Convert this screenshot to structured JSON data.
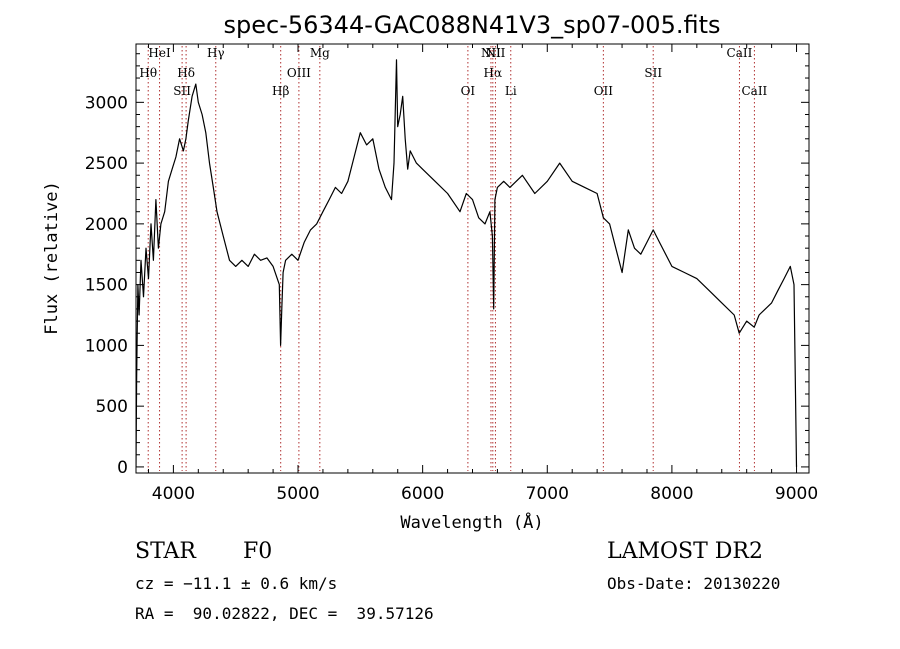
{
  "chart_data": {
    "type": "line",
    "title": "spec-56344-GAC088N41V3_sp07-005.fits",
    "xlabel": "Wavelength (Å)",
    "ylabel": "Flux (relative)",
    "xlim": [
      3700,
      9100
    ],
    "ylim": [
      -50,
      3480
    ],
    "x_ticks": [
      4000,
      5000,
      6000,
      7000,
      8000,
      9000
    ],
    "y_ticks": [
      0,
      500,
      1000,
      1500,
      2000,
      2500,
      3000
    ],
    "grid": false,
    "legend": "none",
    "line_color": "#000000",
    "marker_color": "#b03030",
    "series": [
      {
        "x": [
          3700,
          3705,
          3710,
          3715,
          3725,
          3740,
          3760,
          3780,
          3800,
          3820,
          3840,
          3860,
          3880,
          3900,
          3930,
          3960,
          3990,
          4020,
          4050,
          4080,
          4100,
          4120,
          4150,
          4180,
          4200,
          4230,
          4260,
          4290,
          4320,
          4350,
          4400,
          4450,
          4500,
          4550,
          4600,
          4650,
          4700,
          4750,
          4800,
          4850,
          4860,
          4870,
          4880,
          4900,
          4950,
          5000,
          5050,
          5100,
          5150,
          5200,
          5250,
          5300,
          5350,
          5400,
          5450,
          5500,
          5550,
          5600,
          5650,
          5700,
          5750,
          5770,
          5790,
          5800,
          5820,
          5840,
          5860,
          5880,
          5900,
          5950,
          6000,
          6100,
          6200,
          6300,
          6350,
          6400,
          6450,
          6500,
          6540,
          6560,
          6570,
          6580,
          6600,
          6650,
          6700,
          6800,
          6900,
          7000,
          7100,
          7200,
          7300,
          7400,
          7450,
          7500,
          7550,
          7600,
          7650,
          7700,
          7750,
          7800,
          7850,
          7900,
          8000,
          8100,
          8200,
          8300,
          8400,
          8500,
          8540,
          8600,
          8660,
          8700,
          8800,
          8850,
          8900,
          8950,
          8980,
          9000
        ],
        "y": [
          0,
          700,
          1100,
          1500,
          1250,
          1700,
          1400,
          1800,
          1550,
          2000,
          1700,
          2200,
          1800,
          2000,
          2100,
          2350,
          2450,
          2550,
          2700,
          2600,
          2700,
          2850,
          3050,
          3150,
          3000,
          2900,
          2750,
          2500,
          2300,
          2100,
          1900,
          1700,
          1650,
          1700,
          1650,
          1750,
          1700,
          1720,
          1650,
          1500,
          1000,
          1300,
          1600,
          1700,
          1750,
          1700,
          1850,
          1950,
          2000,
          2100,
          2200,
          2300,
          2250,
          2350,
          2550,
          2750,
          2650,
          2700,
          2450,
          2300,
          2200,
          2500,
          3350,
          2800,
          2900,
          3050,
          2700,
          2450,
          2600,
          2500,
          2450,
          2350,
          2250,
          2100,
          2250,
          2200,
          2050,
          2000,
          2100,
          1900,
          1300,
          2200,
          2300,
          2350,
          2300,
          2400,
          2250,
          2350,
          2500,
          2350,
          2300,
          2250,
          2050,
          2000,
          1800,
          1600,
          1950,
          1800,
          1750,
          1850,
          1950,
          1850,
          1650,
          1600,
          1550,
          1450,
          1350,
          1250,
          1100,
          1200,
          1150,
          1250,
          1350,
          1450,
          1550,
          1650,
          1500,
          0
        ]
      }
    ],
    "lines": [
      {
        "name": "Hθ",
        "x": 3798,
        "row": 2
      },
      {
        "name": "HeI",
        "x": 3889,
        "row": 1
      },
      {
        "name": "SII",
        "x": 4070,
        "row": 4
      },
      {
        "name": "Hδ",
        "x": 4102,
        "row": 2
      },
      {
        "name": "Hγ",
        "x": 4340,
        "row": 1
      },
      {
        "name": "Hβ",
        "x": 4861,
        "row": 4
      },
      {
        "name": "OIII",
        "x": 5007,
        "row": 2
      },
      {
        "name": "Mg",
        "x": 5175,
        "row": 1
      },
      {
        "name": "OI",
        "x": 6363,
        "row": 4
      },
      {
        "name": "NII",
        "x": 6548,
        "row": 1
      },
      {
        "name": "Hα",
        "x": 6563,
        "row": 2
      },
      {
        "name": "NII",
        "x": 6584,
        "row": 0
      },
      {
        "name": "Li",
        "x": 6707,
        "row": 4
      },
      {
        "name": "OII",
        "x": 7450,
        "row": 4
      },
      {
        "name": "SII",
        "x": 7850,
        "row": 2
      },
      {
        "name": "CaII",
        "x": 8542,
        "row": 1
      },
      {
        "name": "CaII",
        "x": 8662,
        "row": 4
      }
    ]
  },
  "info": {
    "object_class": "STAR",
    "subclass": "F0",
    "cz": "cz = −11.1 ± 0.6 km/s",
    "coords": "RA =  90.02822, DEC =  39.57126",
    "survey": "LAMOST DR2",
    "obs_date": "Obs-Date: 20130220"
  }
}
